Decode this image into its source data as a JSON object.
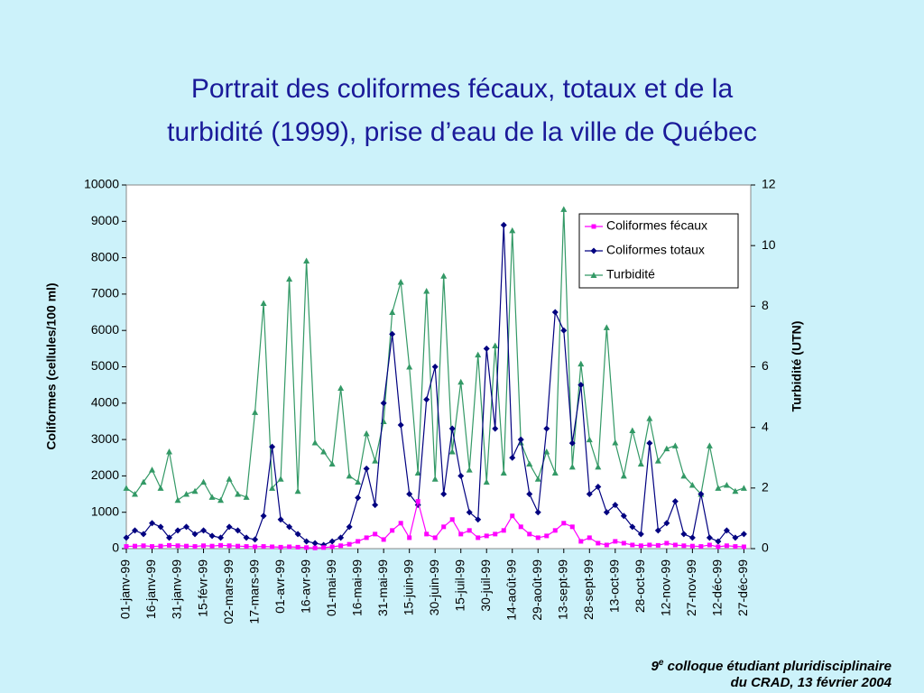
{
  "chart_data": {
    "type": "line",
    "title": [
      "Portrait des coliformes fécaux, totaux et de la",
      "turbidité (1999), prise d’eau de la ville de Québec"
    ],
    "ylabel": "Coliformes (cellules/100 ml)",
    "y2label": "Turbidité (UTN)",
    "x": [
      "1999-01-01",
      "1999-01-06",
      "1999-01-11",
      "1999-01-16",
      "1999-01-21",
      "1999-01-26",
      "1999-01-31",
      "1999-02-05",
      "1999-02-10",
      "1999-02-15",
      "1999-02-20",
      "1999-02-25",
      "1999-03-02",
      "1999-03-07",
      "1999-03-12",
      "1999-03-17",
      "1999-03-22",
      "1999-03-27",
      "1999-04-01",
      "1999-04-06",
      "1999-04-11",
      "1999-04-16",
      "1999-04-21",
      "1999-04-26",
      "1999-05-01",
      "1999-05-06",
      "1999-05-11",
      "1999-05-16",
      "1999-05-21",
      "1999-05-26",
      "1999-05-31",
      "1999-06-05",
      "1999-06-10",
      "1999-06-15",
      "1999-06-20",
      "1999-06-25",
      "1999-06-30",
      "1999-07-05",
      "1999-07-10",
      "1999-07-15",
      "1999-07-20",
      "1999-07-25",
      "1999-07-30",
      "1999-08-04",
      "1999-08-09",
      "1999-08-14",
      "1999-08-19",
      "1999-08-24",
      "1999-08-29",
      "1999-09-03",
      "1999-09-08",
      "1999-09-13",
      "1999-09-18",
      "1999-09-23",
      "1999-09-28",
      "1999-10-03",
      "1999-10-08",
      "1999-10-13",
      "1999-10-18",
      "1999-10-23",
      "1999-10-28",
      "1999-11-02",
      "1999-11-07",
      "1999-11-12",
      "1999-11-17",
      "1999-11-22",
      "1999-11-27",
      "1999-12-02",
      "1999-12-07",
      "1999-12-12",
      "1999-12-17",
      "1999-12-22",
      "1999-12-27"
    ],
    "series": [
      {
        "name": "Coliformes fécaux",
        "color": "#ff00ff",
        "marker": "square",
        "values": [
          60,
          70,
          80,
          60,
          70,
          90,
          80,
          70,
          60,
          80,
          70,
          90,
          80,
          70,
          60,
          50,
          60,
          50,
          40,
          50,
          40,
          30,
          20,
          30,
          50,
          80,
          120,
          200,
          300,
          400,
          250,
          500,
          700,
          300,
          1300,
          400,
          300,
          600,
          800,
          400,
          500,
          300,
          350,
          400,
          500,
          900,
          600,
          400,
          300,
          350,
          500,
          700,
          600,
          200,
          300,
          150,
          100,
          200,
          150,
          100,
          80,
          100,
          90,
          150,
          100,
          80,
          70,
          60,
          100,
          50,
          80,
          60,
          50
        ]
      },
      {
        "name": "Coliformes totaux",
        "color": "#000080",
        "marker": "diamond",
        "values": [
          300,
          500,
          400,
          700,
          600,
          300,
          500,
          600,
          400,
          500,
          350,
          300,
          600,
          500,
          300,
          250,
          900,
          2800,
          800,
          600,
          400,
          200,
          150,
          100,
          200,
          300,
          600,
          1400,
          2200,
          1200,
          4000,
          5900,
          3400,
          1500,
          1200,
          4100,
          5000,
          1500,
          3300,
          2000,
          1000,
          800,
          5500,
          3300,
          8900,
          2500,
          3000,
          1500,
          1000,
          3300,
          6500,
          6000,
          2900,
          4500,
          1500,
          1700,
          1000,
          1200,
          900,
          600,
          400,
          2900,
          500,
          700,
          1300,
          400,
          300,
          1500,
          300,
          200,
          500,
          300,
          400
        ]
      },
      {
        "name": "Turbidité",
        "color": "#339966",
        "marker": "triangle",
        "axis": "y2",
        "values": [
          2,
          1.8,
          2.2,
          2.6,
          2,
          3.2,
          1.6,
          1.8,
          1.9,
          2.2,
          1.7,
          1.6,
          2.3,
          1.8,
          1.7,
          4.5,
          8.1,
          2,
          2.3,
          8.9,
          1.9,
          9.5,
          3.5,
          3.2,
          2.8,
          5.3,
          2.4,
          2.2,
          3.8,
          2.9,
          4.2,
          7.8,
          8.8,
          6,
          2.5,
          8.5,
          2.3,
          9,
          3.2,
          5.5,
          2.6,
          6.4,
          2.2,
          6.7,
          2.5,
          10.5,
          3.5,
          2.8,
          2.3,
          3.2,
          2.5,
          11.2,
          2.7,
          6.1,
          3.6,
          2.7,
          7.3,
          3.5,
          2.4,
          3.9,
          2.8,
          4.3,
          2.9,
          3.3,
          3.4,
          2.4,
          2.1,
          1.8,
          3.4,
          2,
          2.1,
          1.9,
          2
        ]
      }
    ],
    "xlim": [
      "1999-01-01",
      "1999-12-31"
    ],
    "xticks": [
      {
        "value": "1999-01-01",
        "label": "01-janv-99"
      },
      {
        "value": "1999-01-16",
        "label": "16-janv-99"
      },
      {
        "value": "1999-01-31",
        "label": "31-janv-99"
      },
      {
        "value": "1999-02-15",
        "label": "15-févr-99"
      },
      {
        "value": "1999-03-02",
        "label": "02-mars-99"
      },
      {
        "value": "1999-03-17",
        "label": "17-mars-99"
      },
      {
        "value": "1999-04-01",
        "label": "01-avr-99"
      },
      {
        "value": "1999-04-16",
        "label": "16-avr-99"
      },
      {
        "value": "1999-05-01",
        "label": "01-mai-99"
      },
      {
        "value": "1999-05-16",
        "label": "16-mai-99"
      },
      {
        "value": "1999-05-31",
        "label": "31-mai-99"
      },
      {
        "value": "1999-06-15",
        "label": "15-juin-99"
      },
      {
        "value": "1999-06-30",
        "label": "30-juin-99"
      },
      {
        "value": "1999-07-15",
        "label": "15-juil-99"
      },
      {
        "value": "1999-07-30",
        "label": "30-juil-99"
      },
      {
        "value": "1999-08-14",
        "label": "14-août-99"
      },
      {
        "value": "1999-08-29",
        "label": "29-août-99"
      },
      {
        "value": "1999-09-13",
        "label": "13-sept-99"
      },
      {
        "value": "1999-09-28",
        "label": "28-sept-99"
      },
      {
        "value": "1999-10-13",
        "label": "13-oct-99"
      },
      {
        "value": "1999-10-28",
        "label": "28-oct-99"
      },
      {
        "value": "1999-11-12",
        "label": "12-nov-99"
      },
      {
        "value": "1999-11-27",
        "label": "27-nov-99"
      },
      {
        "value": "1999-12-12",
        "label": "12-déc-99"
      },
      {
        "value": "1999-12-27",
        "label": "27-déc-99"
      }
    ],
    "ylim": [
      0,
      10000
    ],
    "yticks": [
      0,
      1000,
      2000,
      3000,
      4000,
      5000,
      6000,
      7000,
      8000,
      9000,
      10000
    ],
    "y2lim": [
      0,
      12
    ],
    "y2ticks": [
      0,
      2,
      4,
      6,
      8,
      10,
      12
    ],
    "legend": "upper right"
  },
  "footer": {
    "number": "9",
    "sup": "e",
    "line1": " colloque étudiant pluridisciplinaire",
    "line2": "du CRAD, 13 février 2004"
  }
}
